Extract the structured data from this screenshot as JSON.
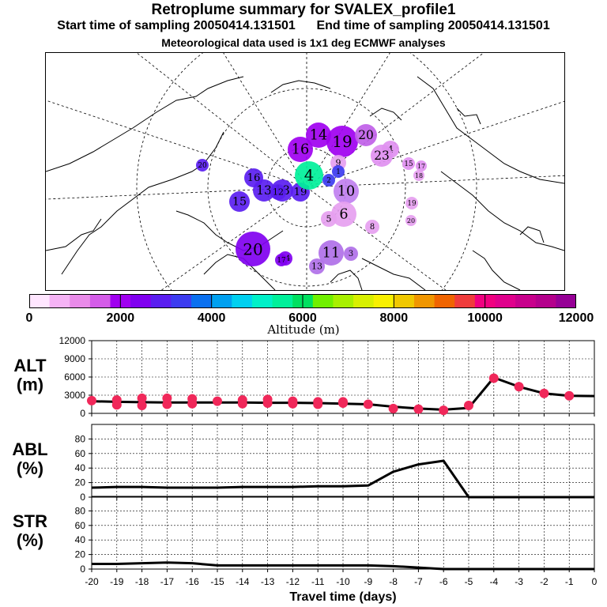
{
  "title": "Retroplume summary for SVALEX_profile1",
  "subtitle_start": "Start time of sampling 20050414.131501",
  "subtitle_end": "End time of sampling 20050414.131501",
  "subtitle_met": "Meteorological data used is 1x1 deg ECMWF analyses",
  "colorbar": {
    "label": "Altitude (m)",
    "ticks": [
      "0",
      "2000",
      "4000",
      "6000",
      "8000",
      "10000",
      "12000"
    ],
    "range": [
      0,
      12000
    ],
    "colors": [
      "#ffe6ff",
      "#f5b3f5",
      "#e98be9",
      "#d45ce8",
      "#a000f0",
      "#8000f0",
      "#5a1ef0",
      "#3c3cf0",
      "#0a70f0",
      "#00a0f0",
      "#00d0f0",
      "#00f0c8",
      "#00f09a",
      "#00e060",
      "#70f000",
      "#a8f000",
      "#d8f000",
      "#f8f000",
      "#f0c800",
      "#f09600",
      "#f06400",
      "#f03c3c",
      "#f00080",
      "#e0008c",
      "#c8008c",
      "#b4008c",
      "#960096"
    ]
  },
  "map": {
    "labels": [
      {
        "t": "14",
        "c": "#a000f0"
      },
      {
        "t": "19",
        "c": "#a000f0"
      },
      {
        "t": "16",
        "c": "#a000f0"
      },
      {
        "t": "20",
        "c": "#c060e8"
      },
      {
        "t": "4",
        "c": "#e090f0"
      },
      {
        "t": "23",
        "c": "#e090f0"
      },
      {
        "t": "15",
        "c": "#e090f0"
      },
      {
        "t": "17",
        "c": "#e090f0"
      },
      {
        "t": "18",
        "c": "#e6a0f0"
      },
      {
        "t": "9",
        "c": "#e6a0f0"
      },
      {
        "t": "10",
        "c": "#c080f0"
      },
      {
        "t": "19",
        "c": "#e6a0f0"
      },
      {
        "t": "20",
        "c": "#e6a0f0"
      },
      {
        "t": "8",
        "c": "#e6a0f0"
      },
      {
        "t": "6",
        "c": "#e6a0f0"
      },
      {
        "t": "5",
        "c": "#e6a0f0"
      },
      {
        "t": "11",
        "c": "#b070e8"
      },
      {
        "t": "3",
        "c": "#b070e8"
      },
      {
        "t": "13",
        "c": "#b070e8"
      },
      {
        "t": "14",
        "c": "#8000f0"
      },
      {
        "t": "17",
        "c": "#8000f0"
      },
      {
        "t": "20",
        "c": "#8000f0"
      },
      {
        "t": "16",
        "c": "#5a1ef0"
      },
      {
        "t": "18",
        "c": "#5a1ef0"
      },
      {
        "t": "13",
        "c": "#5a1ef0"
      },
      {
        "t": "19",
        "c": "#5a1ef0"
      },
      {
        "t": "15",
        "c": "#5a1ef0"
      },
      {
        "t": "12",
        "c": "#5a1ef0"
      },
      {
        "t": "20",
        "c": "#5a1ef0"
      },
      {
        "t": "4",
        "c": "#00f09a"
      },
      {
        "t": "1",
        "c": "#3c3cf0"
      },
      {
        "t": "2",
        "c": "#3c3cf0"
      }
    ]
  },
  "chart_data": [
    {
      "type": "line",
      "title": "ALT (m)",
      "label_top": "ALT",
      "label_bottom": "(m)",
      "x": [
        -20,
        -19,
        -18,
        -17,
        -16,
        -15,
        -14,
        -13,
        -12,
        -11,
        -10,
        -9,
        -8,
        -7,
        -6,
        -5,
        -4,
        -3,
        -2,
        -1,
        0
      ],
      "values": [
        2000,
        1900,
        1850,
        1800,
        1800,
        1800,
        1800,
        1750,
        1750,
        1700,
        1600,
        1500,
        1100,
        800,
        600,
        900,
        5900,
        4400,
        3300,
        2900,
        2850
      ],
      "ylim": [
        0,
        12000
      ],
      "yticks": [
        "0",
        "3000",
        "6000",
        "9000",
        "12000"
      ],
      "markers": [
        {
          "x": -20,
          "y": 2100
        },
        {
          "x": -19,
          "y": 1400
        },
        {
          "x": -19,
          "y": 2200
        },
        {
          "x": -18,
          "y": 1300
        },
        {
          "x": -18,
          "y": 2500
        },
        {
          "x": -17,
          "y": 1500
        },
        {
          "x": -17,
          "y": 2500
        },
        {
          "x": -16,
          "y": 1600
        },
        {
          "x": -16,
          "y": 2400
        },
        {
          "x": -15,
          "y": 2000
        },
        {
          "x": -14,
          "y": 1600
        },
        {
          "x": -14,
          "y": 2200
        },
        {
          "x": -13,
          "y": 1700
        },
        {
          "x": -13,
          "y": 2300
        },
        {
          "x": -12,
          "y": 1600
        },
        {
          "x": -12,
          "y": 2000
        },
        {
          "x": -11,
          "y": 1500
        },
        {
          "x": -11,
          "y": 1900
        },
        {
          "x": -10,
          "y": 1700
        },
        {
          "x": -10,
          "y": 1900
        },
        {
          "x": -9,
          "y": 1500
        },
        {
          "x": -8,
          "y": 800
        },
        {
          "x": -7,
          "y": 700
        },
        {
          "x": -6,
          "y": 500
        },
        {
          "x": -5,
          "y": 1300
        },
        {
          "x": -4,
          "y": 5800
        },
        {
          "x": -3,
          "y": 4400
        },
        {
          "x": -2,
          "y": 3300
        },
        {
          "x": -1,
          "y": 2900
        }
      ],
      "line_color": "#000000",
      "marker_color": "#f0285a"
    },
    {
      "type": "line",
      "title": "ABL (%)",
      "label_top": "ABL",
      "label_bottom": "(%)",
      "x": [
        -20,
        -19,
        -18,
        -17,
        -16,
        -15,
        -14,
        -13,
        -12,
        -11,
        -10,
        -9,
        -8,
        -7,
        -6,
        -5,
        -4,
        -3,
        -2,
        -1,
        0
      ],
      "values": [
        13,
        14,
        14,
        13,
        13,
        13,
        14,
        14,
        14,
        15,
        15,
        16,
        35,
        45,
        50,
        0,
        0,
        0,
        0,
        0,
        0
      ],
      "ylim": [
        0,
        100
      ],
      "yticks": [
        "0",
        "20",
        "40",
        "60",
        "80"
      ]
    },
    {
      "type": "line",
      "title": "STR (%)",
      "label_top": "STR",
      "label_bottom": "(%)",
      "x": [
        -20,
        -19,
        -18,
        -17,
        -16,
        -15,
        -14,
        -13,
        -12,
        -11,
        -10,
        -9,
        -8,
        -7,
        -6,
        -5,
        -4,
        -3,
        -2,
        -1,
        0
      ],
      "values": [
        7,
        7,
        8,
        9,
        8,
        5,
        5,
        5,
        5,
        5,
        5,
        5,
        4,
        2,
        0,
        0,
        0,
        0,
        0,
        0,
        0
      ],
      "ylim": [
        0,
        100
      ],
      "yticks": [
        "0",
        "20",
        "40",
        "60",
        "80"
      ]
    }
  ],
  "xaxis": {
    "label": "Travel time (days)",
    "ticks": [
      "-20",
      "-19",
      "-18",
      "-17",
      "-16",
      "-15",
      "-14",
      "-13",
      "-12",
      "-11",
      "-10",
      "-9",
      "-8",
      "-7",
      "-6",
      "-5",
      "-4",
      "-3",
      "-2",
      "-1",
      "0"
    ]
  }
}
